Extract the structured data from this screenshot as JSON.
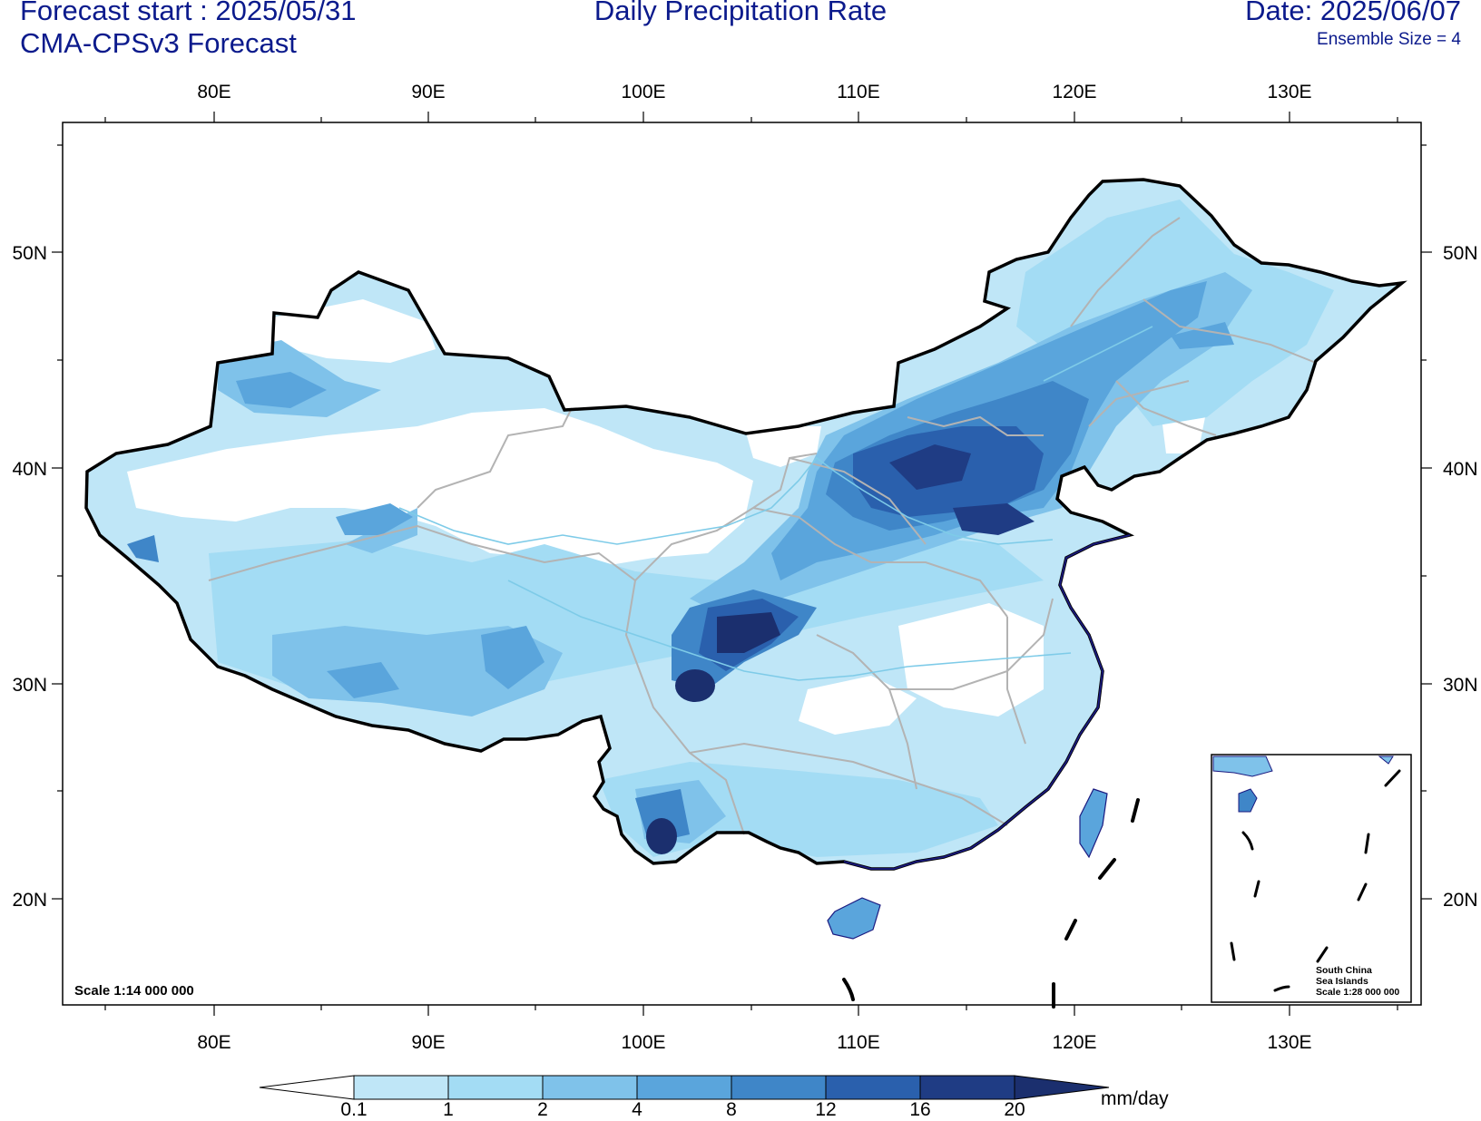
{
  "header": {
    "forecast_start": "Forecast start : 2025/05/31",
    "model": "CMA-CPSv3 Forecast",
    "title": "Daily Precipitation Rate",
    "date": "Date: 2025/06/07",
    "ensemble": "Ensemble Size = 4"
  },
  "map": {
    "lon_ticks": [
      "80E",
      "90E",
      "100E",
      "110E",
      "120E",
      "130E"
    ],
    "lat_ticks": [
      "50N",
      "40N",
      "30N",
      "20N"
    ],
    "scale_label": "Scale 1:14 000 000",
    "inset": {
      "line1": "South China",
      "line2": "Sea Islands",
      "line3": "Scale 1:28 000 000"
    }
  },
  "colorbar": {
    "levels": [
      "0.1",
      "1",
      "2",
      "4",
      "8",
      "12",
      "16",
      "20"
    ],
    "unit": "mm/day",
    "colors": [
      "#ffffff",
      "#bfe6f7",
      "#a3dcf4",
      "#7fc2ea",
      "#5aa5dc",
      "#3f86c8",
      "#2a60ad",
      "#1f3c84",
      "#1b2f6e"
    ]
  }
}
